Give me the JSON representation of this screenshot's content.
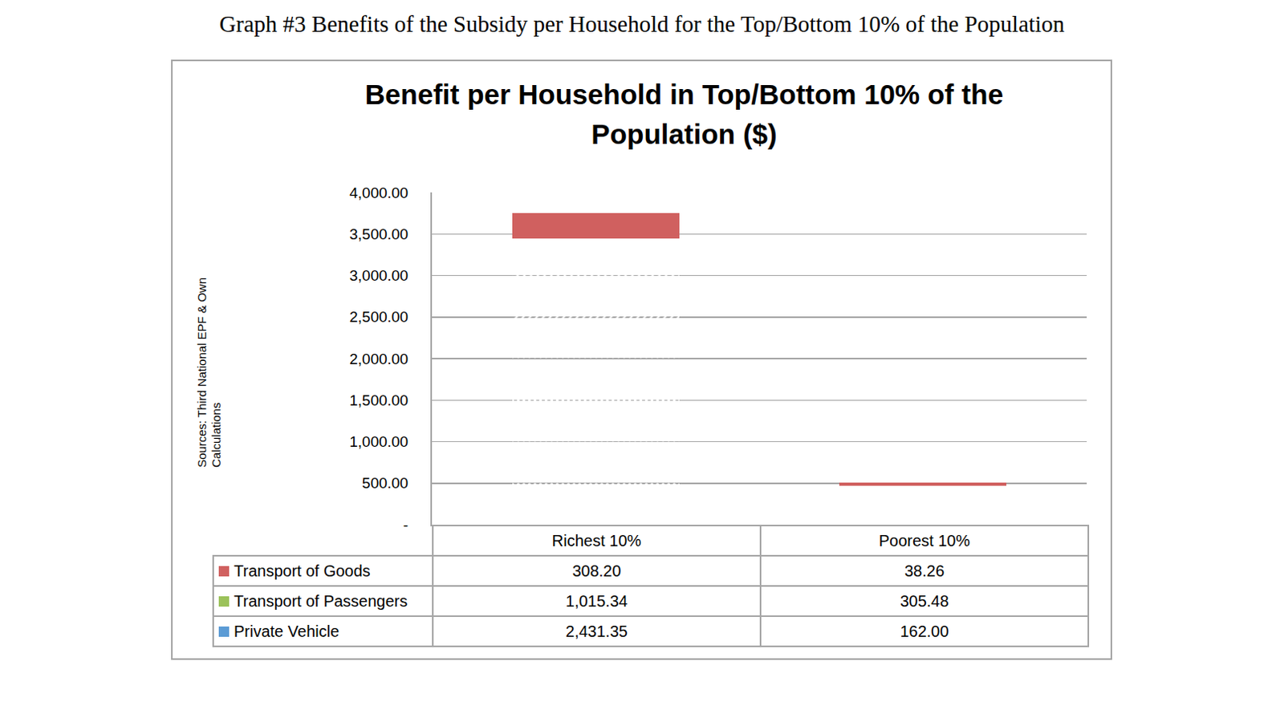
{
  "chart_data": {
    "type": "bar",
    "caption": "Graph #3 Benefits of the Subsidy per Household for the Top/Bottom 10% of the Population",
    "title": "Benefit per Household in Top/Bottom 10% of the Population ($)",
    "source": "Sources: Third National EPF & Own Calculations",
    "categories": [
      "Richest 10%",
      "Poorest 10%"
    ],
    "series": [
      {
        "name": "Transport of Goods",
        "color": "#d0605f",
        "values": [
          308.2,
          38.26
        ],
        "value_labels": [
          "308.20",
          "38.26"
        ]
      },
      {
        "name": "Transport of Passengers",
        "color": "#9bc25a",
        "values": [
          1015.34,
          305.48
        ],
        "value_labels": [
          "1,015.34",
          "305.48"
        ]
      },
      {
        "name": "Private Vehicle",
        "color": "#5b9bd5",
        "values": [
          2431.35,
          162.0
        ],
        "value_labels": [
          "2,431.35",
          "162.00"
        ]
      }
    ],
    "stacked": true,
    "ylim": [
      0,
      4000
    ],
    "yticks": [
      {
        "value": 0,
        "label": "-"
      },
      {
        "value": 500,
        "label": "500.00"
      },
      {
        "value": 1000,
        "label": "1,000.00"
      },
      {
        "value": 1500,
        "label": "1,500.00"
      },
      {
        "value": 2000,
        "label": "2,000.00"
      },
      {
        "value": 2500,
        "label": "2,500.00"
      },
      {
        "value": 3000,
        "label": "3,000.00"
      },
      {
        "value": 3500,
        "label": "3,500.00"
      },
      {
        "value": 4000,
        "label": "4,000.00"
      }
    ],
    "grid": true,
    "tick_labels": "y"
  }
}
